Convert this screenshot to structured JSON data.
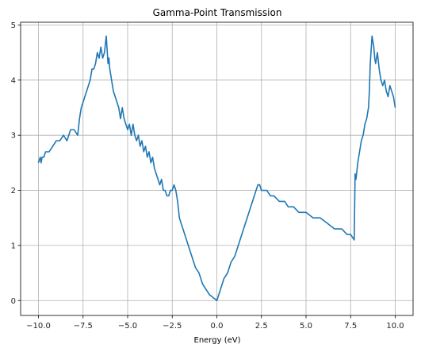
{
  "chart_data": {
    "type": "line",
    "title": "Gamma-Point Transmission",
    "xlabel": "Energy (eV)",
    "ylabel": "",
    "xlim": [
      -11.0,
      11.0
    ],
    "ylim": [
      -0.27,
      5.05
    ],
    "grid": true,
    "legend": "none",
    "line_color": "#1f77b4",
    "x_ticks": [
      -10.0,
      -7.5,
      -5.0,
      -2.5,
      0.0,
      2.5,
      5.0,
      7.5,
      10.0
    ],
    "x_tick_labels": [
      "−10.0",
      "−7.5",
      "−5.0",
      "−2.5",
      "0.0",
      "2.5",
      "5.0",
      "7.5",
      "10.0"
    ],
    "y_ticks": [
      0,
      1,
      2,
      3,
      4,
      5
    ],
    "y_tick_labels": [
      "0",
      "1",
      "2",
      "3",
      "4",
      "5"
    ],
    "series": [
      {
        "x": [
          -10.0,
          -9.9,
          -9.85,
          -9.8,
          -9.7,
          -9.6,
          -9.4,
          -9.2,
          -9.0,
          -8.8,
          -8.6,
          -8.4,
          -8.2,
          -8.0,
          -7.8,
          -7.7,
          -7.6,
          -7.5,
          -7.4,
          -7.3,
          -7.2,
          -7.1,
          -7.0,
          -6.9,
          -6.8,
          -6.7,
          -6.6,
          -6.5,
          -6.4,
          -6.3,
          -6.2,
          -6.1,
          -6.05,
          -6.0,
          -5.9,
          -5.8,
          -5.7,
          -5.6,
          -5.5,
          -5.4,
          -5.3,
          -5.2,
          -5.1,
          -5.0,
          -4.9,
          -4.8,
          -4.7,
          -4.6,
          -4.5,
          -4.4,
          -4.3,
          -4.2,
          -4.1,
          -4.0,
          -3.9,
          -3.8,
          -3.7,
          -3.6,
          -3.5,
          -3.4,
          -3.3,
          -3.2,
          -3.1,
          -3.0,
          -2.9,
          -2.8,
          -2.7,
          -2.6,
          -2.5,
          -2.4,
          -2.3,
          -2.2,
          -2.1,
          -2.0,
          -1.9,
          -1.8,
          -1.7,
          -1.6,
          -1.5,
          -1.4,
          -1.3,
          -1.2,
          -1.1,
          -1.0,
          -0.9,
          -0.8,
          -0.7,
          -0.6,
          -0.5,
          -0.4,
          -0.3,
          -0.2,
          -0.1,
          0.0,
          0.1,
          0.2,
          0.3,
          0.4,
          0.5,
          0.6,
          0.7,
          0.8,
          0.9,
          1.0,
          1.1,
          1.2,
          1.3,
          1.4,
          1.5,
          1.6,
          1.7,
          1.8,
          1.9,
          2.0,
          2.1,
          2.2,
          2.3,
          2.4,
          2.5,
          2.6,
          2.8,
          3.0,
          3.2,
          3.5,
          3.8,
          4.0,
          4.3,
          4.6,
          5.0,
          5.4,
          5.8,
          6.2,
          6.6,
          7.0,
          7.3,
          7.5,
          7.6,
          7.7,
          7.75,
          7.8,
          7.9,
          8.0,
          8.1,
          8.2,
          8.3,
          8.4,
          8.5,
          8.55,
          8.6,
          8.7,
          8.8,
          8.85,
          8.9,
          9.0,
          9.1,
          9.2,
          9.3,
          9.4,
          9.5,
          9.6,
          9.7,
          9.8,
          9.9,
          10.0
        ],
        "y": [
          2.5,
          2.6,
          2.5,
          2.6,
          2.6,
          2.7,
          2.7,
          2.8,
          2.9,
          2.9,
          3.0,
          2.9,
          3.1,
          3.1,
          3.0,
          3.3,
          3.5,
          3.6,
          3.7,
          3.8,
          3.9,
          4.0,
          4.2,
          4.2,
          4.3,
          4.5,
          4.4,
          4.6,
          4.4,
          4.5,
          4.8,
          4.3,
          4.4,
          4.2,
          4.0,
          3.8,
          3.7,
          3.6,
          3.5,
          3.3,
          3.5,
          3.3,
          3.2,
          3.1,
          3.2,
          3.0,
          3.2,
          3.0,
          2.9,
          3.0,
          2.8,
          2.9,
          2.7,
          2.8,
          2.6,
          2.7,
          2.5,
          2.6,
          2.4,
          2.3,
          2.2,
          2.1,
          2.2,
          2.0,
          2.0,
          1.9,
          1.9,
          2.0,
          2.0,
          2.1,
          2.0,
          1.8,
          1.5,
          1.4,
          1.3,
          1.2,
          1.1,
          1.0,
          0.9,
          0.8,
          0.7,
          0.6,
          0.55,
          0.5,
          0.4,
          0.3,
          0.25,
          0.2,
          0.15,
          0.1,
          0.08,
          0.05,
          0.03,
          0.0,
          0.1,
          0.2,
          0.3,
          0.4,
          0.45,
          0.5,
          0.6,
          0.7,
          0.75,
          0.8,
          0.9,
          1.0,
          1.1,
          1.2,
          1.3,
          1.4,
          1.5,
          1.6,
          1.7,
          1.8,
          1.9,
          2.0,
          2.1,
          2.1,
          2.0,
          2.0,
          2.0,
          1.9,
          1.9,
          1.8,
          1.8,
          1.7,
          1.7,
          1.6,
          1.6,
          1.5,
          1.5,
          1.4,
          1.3,
          1.3,
          1.2,
          1.2,
          1.15,
          1.1,
          2.3,
          2.2,
          2.5,
          2.7,
          2.9,
          3.0,
          3.2,
          3.3,
          3.5,
          3.8,
          4.3,
          4.8,
          4.6,
          4.4,
          4.3,
          4.5,
          4.2,
          4.0,
          3.9,
          4.0,
          3.8,
          3.7,
          3.9,
          3.8,
          3.7,
          3.5
        ]
      }
    ]
  }
}
